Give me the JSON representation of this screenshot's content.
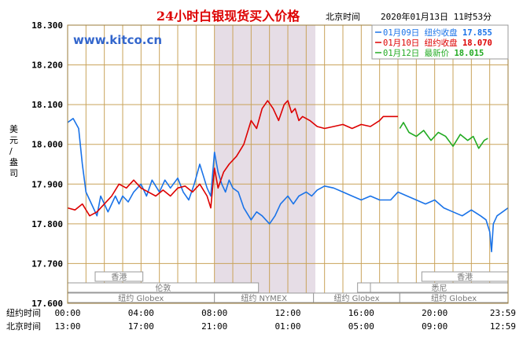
{
  "chart_data": {
    "type": "line",
    "title": "24小时白银现货买入价格",
    "time_zone_label": "北京时间",
    "timestamp": "2020年01月13日 11时53分",
    "watermark": "www.kitco.cn",
    "ylabel": "美元/盎司",
    "ylim": [
      17.6,
      18.3
    ],
    "yticks": [
      "18.300",
      "18.200",
      "18.100",
      "18.000",
      "17.900",
      "17.800",
      "17.700",
      "17.600"
    ],
    "x_row_labels": [
      "纽约时间",
      "北京时间"
    ],
    "x_ticks_ny": [
      "00:00",
      "04:00",
      "08:00",
      "12:00",
      "16:00",
      "20:00",
      "23:59"
    ],
    "x_ticks_bj": [
      "13:00",
      "17:00",
      "21:00",
      "01:00",
      "05:00",
      "09:00",
      "12:59"
    ],
    "x_tick_hours": [
      0,
      4,
      8,
      12,
      16,
      20,
      23.983
    ],
    "xlim": [
      0,
      24
    ],
    "shaded_hours": [
      8,
      13.5
    ],
    "legend": [
      {
        "date": "01月09日",
        "label": "纽约收盘",
        "value": "17.855",
        "color": "#1a73e8"
      },
      {
        "date": "01月10日",
        "label": "纽约收盘",
        "value": "18.070",
        "color": "#dd0000"
      },
      {
        "date": "01月12日",
        "label": "最新价",
        "value": "18.015",
        "color": "#22aa22"
      }
    ],
    "sessions": [
      {
        "name": "香港",
        "row": 0,
        "start": 1.5,
        "end": 4.1
      },
      {
        "name": "伦敦",
        "row": 1,
        "start": 0,
        "end": 10.4
      },
      {
        "name": "纽约 Globex",
        "row": 2,
        "start": 0,
        "end": 8.0
      },
      {
        "name": "纽约 NYMEX",
        "row": 2,
        "start": 8.0,
        "end": 13.4
      },
      {
        "name": "纽约 Globex",
        "row": 2,
        "start": 13.4,
        "end": 18.1
      },
      {
        "name": "香港",
        "row": 0,
        "start": 19.3,
        "end": 24
      },
      {
        "name": "伦敦",
        "row": 1,
        "start": 15.8,
        "end": 24
      },
      {
        "name": "悉尼",
        "row": 1,
        "start": 16.5,
        "end": 24
      },
      {
        "name": "纽约 Globex",
        "row": 2,
        "start": 18.1,
        "end": 24
      }
    ],
    "series": [
      {
        "date": "01月09日",
        "color": "#1a73e8",
        "x": [
          0,
          0.3,
          0.6,
          0.8,
          1.0,
          1.2,
          1.4,
          1.6,
          1.8,
          2.0,
          2.2,
          2.4,
          2.6,
          2.8,
          3.0,
          3.3,
          3.6,
          4.0,
          4.3,
          4.6,
          5.0,
          5.3,
          5.6,
          6.0,
          6.3,
          6.6,
          6.9,
          7.2,
          7.4,
          7.6,
          7.8,
          8.0,
          8.2,
          8.4,
          8.6,
          8.8,
          9.0,
          9.3,
          9.6,
          10.0,
          10.3,
          10.6,
          11.0,
          11.3,
          11.6,
          12.0,
          12.3,
          12.6,
          13.0,
          13.3,
          13.6,
          14.0,
          14.5,
          15.0,
          15.5,
          16.0,
          16.5,
          17.0,
          17.2,
          17.6,
          18.0,
          18.5,
          19.0,
          19.5,
          20.0,
          20.5,
          21.0,
          21.5,
          22.0,
          22.5,
          22.8,
          23.0,
          23.1,
          23.2,
          23.4,
          23.7,
          24.0
        ],
        "y": [
          18.055,
          18.065,
          18.04,
          17.95,
          17.88,
          17.86,
          17.84,
          17.82,
          17.87,
          17.85,
          17.83,
          17.85,
          17.87,
          17.85,
          17.87,
          17.855,
          17.88,
          17.9,
          17.87,
          17.91,
          17.88,
          17.91,
          17.89,
          17.915,
          17.88,
          17.86,
          17.9,
          17.95,
          17.92,
          17.89,
          17.87,
          17.98,
          17.93,
          17.9,
          17.88,
          17.91,
          17.89,
          17.88,
          17.84,
          17.81,
          17.83,
          17.82,
          17.8,
          17.82,
          17.85,
          17.87,
          17.85,
          17.87,
          17.88,
          17.87,
          17.885,
          17.895,
          17.89,
          17.88,
          17.87,
          17.86,
          17.87,
          17.86,
          17.86,
          17.86,
          17.88,
          17.87,
          17.86,
          17.85,
          17.86,
          17.84,
          17.83,
          17.82,
          17.835,
          17.82,
          17.81,
          17.78,
          17.73,
          17.8,
          17.82,
          17.83,
          17.84
        ]
      },
      {
        "date": "01月10日",
        "color": "#dd0000",
        "x": [
          0,
          0.4,
          0.8,
          1.2,
          1.6,
          2.0,
          2.4,
          2.8,
          3.2,
          3.6,
          4.0,
          4.4,
          4.8,
          5.2,
          5.6,
          6.0,
          6.4,
          6.8,
          7.2,
          7.6,
          7.8,
          8.0,
          8.2,
          8.5,
          8.8,
          9.2,
          9.6,
          10.0,
          10.3,
          10.6,
          10.9,
          11.2,
          11.5,
          11.8,
          12.0,
          12.2,
          12.4,
          12.6,
          12.8,
          13.2,
          13.6,
          14.0,
          14.5,
          15.0,
          15.5,
          16.0,
          16.5,
          17.0,
          17.2,
          17.6,
          18.0
        ],
        "y": [
          17.84,
          17.835,
          17.85,
          17.82,
          17.83,
          17.85,
          17.87,
          17.9,
          17.89,
          17.91,
          17.89,
          17.88,
          17.87,
          17.885,
          17.87,
          17.89,
          17.895,
          17.88,
          17.9,
          17.87,
          17.84,
          17.94,
          17.89,
          17.93,
          17.95,
          17.97,
          18.0,
          18.06,
          18.04,
          18.09,
          18.11,
          18.09,
          18.06,
          18.1,
          18.11,
          18.08,
          18.09,
          18.06,
          18.07,
          18.06,
          18.045,
          18.04,
          18.045,
          18.05,
          18.04,
          18.05,
          18.045,
          18.06,
          18.07,
          18.07,
          18.07
        ]
      },
      {
        "date": "01月12日",
        "color": "#22aa22",
        "x": [
          18.1,
          18.3,
          18.6,
          19.0,
          19.4,
          19.8,
          20.2,
          20.6,
          21.0,
          21.4,
          21.8,
          22.1,
          22.4,
          22.7,
          22.9
        ],
        "y": [
          18.04,
          18.055,
          18.03,
          18.02,
          18.035,
          18.01,
          18.03,
          18.02,
          17.995,
          18.025,
          18.01,
          18.02,
          17.99,
          18.01,
          18.015
        ]
      }
    ]
  }
}
